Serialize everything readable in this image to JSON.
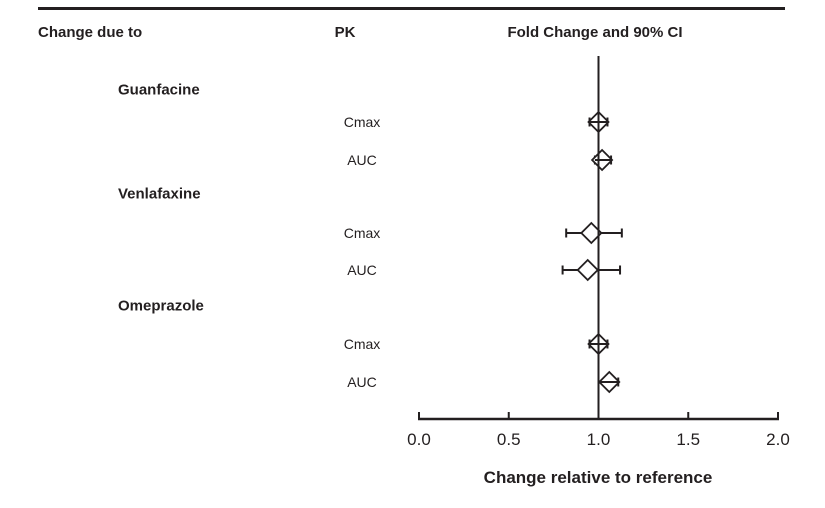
{
  "figure": {
    "columns": {
      "change_due_to": "Change due to",
      "pk": "PK",
      "fold_change": "Fold Change and 90% CI"
    },
    "x_axis_title": "Change relative to reference"
  },
  "chart_data": {
    "type": "forest",
    "title": "Fold Change and 90% CI",
    "xlabel": "Change relative to reference",
    "xlim": [
      0.0,
      2.0
    ],
    "xticks": [
      0.0,
      0.5,
      1.0,
      1.5,
      2.0
    ],
    "xtick_labels": [
      "0.0",
      "0.5",
      "1.0",
      "1.5",
      "2.0"
    ],
    "reference_value": 1.0,
    "ci_level": "90%",
    "marker": "open-diamond",
    "grid": false,
    "groups": [
      {
        "label": "Guanfacine",
        "rows": [
          {
            "pk": "Cmax",
            "est": 1.0,
            "lo": 0.95,
            "hi": 1.05
          },
          {
            "pk": "AUC",
            "est": 1.02,
            "lo": 0.98,
            "hi": 1.07
          }
        ]
      },
      {
        "label": "Venlafaxine",
        "rows": [
          {
            "pk": "Cmax",
            "est": 0.96,
            "lo": 0.82,
            "hi": 1.13
          },
          {
            "pk": "AUC",
            "est": 0.94,
            "lo": 0.8,
            "hi": 1.12
          }
        ]
      },
      {
        "label": "Omeprazole",
        "rows": [
          {
            "pk": "Cmax",
            "est": 1.0,
            "lo": 0.95,
            "hi": 1.05
          },
          {
            "pk": "AUC",
            "est": 1.06,
            "lo": 1.0,
            "hi": 1.11
          }
        ]
      }
    ]
  },
  "colors": {
    "ink": "#231f20",
    "background": "#ffffff",
    "marker_fill": "#ffffff"
  }
}
